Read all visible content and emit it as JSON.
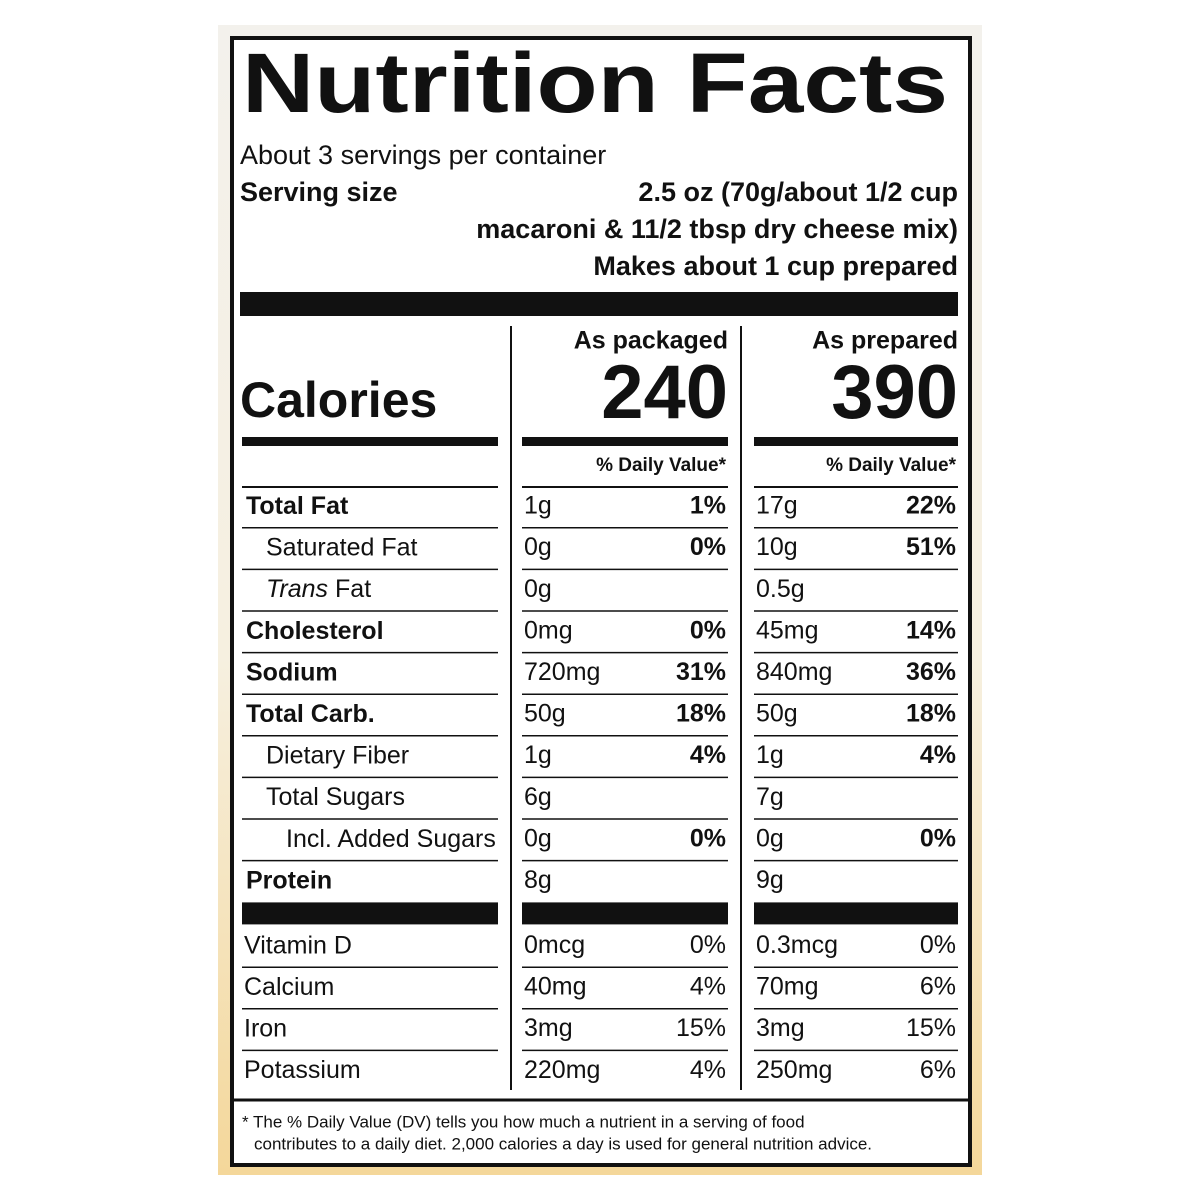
{
  "title": "Nutrition Facts",
  "servings": "About 3 servings per container",
  "serving_size": {
    "label": "Serving size",
    "lines": [
      "2.5 oz (70g/about 1/2 cup",
      "macaroni & 11/2 tbsp dry cheese mix)",
      "Makes about 1 cup prepared"
    ]
  },
  "calories_label": "Calories",
  "columns": [
    {
      "header": "As packaged",
      "calories": "240",
      "dv_header": "% Daily Value*"
    },
    {
      "header": "As prepared",
      "calories": "390",
      "dv_header": "% Daily Value*"
    }
  ],
  "nutrients": [
    {
      "name": "Total Fat",
      "style": "bold",
      "values": [
        {
          "amount": "1g",
          "dv": "1%"
        },
        {
          "amount": "17g",
          "dv": "22%"
        }
      ]
    },
    {
      "name": "Saturated Fat",
      "style": "indent",
      "values": [
        {
          "amount": "0g",
          "dv": "0%"
        },
        {
          "amount": "10g",
          "dv": "51%"
        }
      ]
    },
    {
      "name_italic": "Trans",
      "name": "Fat",
      "style": "indent",
      "values": [
        {
          "amount": "0g"
        },
        {
          "amount": "0.5g"
        }
      ]
    },
    {
      "name": "Cholesterol",
      "style": "bold",
      "values": [
        {
          "amount": "0mg",
          "dv": "0%"
        },
        {
          "amount": "45mg",
          "dv": "14%"
        }
      ]
    },
    {
      "name": "Sodium",
      "style": "bold",
      "values": [
        {
          "amount": "720mg",
          "dv": "31%"
        },
        {
          "amount": "840mg",
          "dv": "36%"
        }
      ]
    },
    {
      "name": "Total Carb.",
      "style": "bold",
      "values": [
        {
          "amount": "50g",
          "dv": "18%"
        },
        {
          "amount": "50g",
          "dv": "18%"
        }
      ]
    },
    {
      "name": "Dietary Fiber",
      "style": "indent",
      "values": [
        {
          "amount": "1g",
          "dv": "4%"
        },
        {
          "amount": "1g",
          "dv": "4%"
        }
      ]
    },
    {
      "name": "Total Sugars",
      "style": "indent",
      "values": [
        {
          "amount": "6g"
        },
        {
          "amount": "7g"
        }
      ]
    },
    {
      "name": "Incl. Added Sugars",
      "style": "indent2",
      "values": [
        {
          "amount": "0g",
          "dv": "0%"
        },
        {
          "amount": "0g",
          "dv": "0%"
        }
      ]
    },
    {
      "name": "Protein",
      "style": "bold",
      "values": [
        {
          "amount": "8g"
        },
        {
          "amount": "9g"
        }
      ]
    }
  ],
  "vitamins": [
    {
      "name": "Vitamin D",
      "values": [
        {
          "amount": "0mcg",
          "dv": "0%"
        },
        {
          "amount": "0.3mcg",
          "dv": "0%"
        }
      ]
    },
    {
      "name": "Calcium",
      "values": [
        {
          "amount": "40mg",
          "dv": "4%"
        },
        {
          "amount": "70mg",
          "dv": "6%"
        }
      ]
    },
    {
      "name": "Iron",
      "values": [
        {
          "amount": "3mg",
          "dv": "15%"
        },
        {
          "amount": "3mg",
          "dv": "15%"
        }
      ]
    },
    {
      "name": "Potassium",
      "values": [
        {
          "amount": "220mg",
          "dv": "4%"
        },
        {
          "amount": "250mg",
          "dv": "6%"
        }
      ]
    }
  ],
  "footnote": [
    "* The % Daily Value (DV) tells you how much a nutrient in a serving of food",
    "contributes to a daily diet. 2,000 calories a day is used for general nutrition advice."
  ]
}
